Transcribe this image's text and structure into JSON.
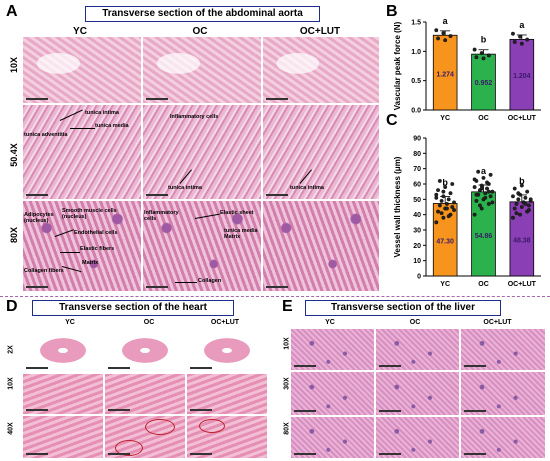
{
  "panels": {
    "A": {
      "label": "A",
      "title": "Transverse section of the abdominal aorta",
      "columns": [
        "YC",
        "OC",
        "OC+LUT"
      ],
      "rows": [
        "10X",
        "50.4X",
        "80X"
      ],
      "annotations": {
        "r2c1": [
          "tunica intima",
          "tunica media",
          "tunica adventitia"
        ],
        "r2c2": [
          "Inflammatory cells",
          "tunica intima"
        ],
        "r2c3": [
          "tunica intima"
        ],
        "r3c1": [
          "Adipocytes (nucleus)",
          "Smooth muscle cells (nucleus)",
          "Endothelial cells",
          "Elastic fibers",
          "Matrix",
          "Collagen fibers"
        ],
        "r3c2": [
          "Inflammatory cells",
          "Elastic sheet",
          "tunica media Matrix",
          "Collagen"
        ]
      }
    },
    "B": {
      "label": "B"
    },
    "C": {
      "label": "C"
    },
    "D": {
      "label": "D",
      "title": "Transverse section of the heart",
      "columns": [
        "YC",
        "OC",
        "OC+LUT"
      ],
      "rows": [
        "2X",
        "10X",
        "40X"
      ]
    },
    "E": {
      "label": "E",
      "title": "Transverse section of the liver",
      "columns": [
        "YC",
        "OC",
        "OC+LUT"
      ],
      "rows": [
        "10X",
        "30X",
        "80X"
      ]
    }
  },
  "chart_data": [
    {
      "type": "bar",
      "panel": "B",
      "categories": [
        "YC",
        "OC",
        "OC+LUT"
      ],
      "values": [
        1.274,
        0.952,
        1.204
      ],
      "value_labels": [
        "1.274",
        "0.952",
        "1.204"
      ],
      "significance": [
        "a",
        "b",
        "a"
      ],
      "colors": [
        "#f7941d",
        "#2bb24c",
        "#8b3fb5"
      ],
      "points": [
        [
          1.36,
          1.31,
          1.26,
          1.22,
          1.19
        ],
        [
          1.03,
          0.97,
          0.93,
          0.9,
          0.88
        ],
        [
          1.3,
          1.25,
          1.2,
          1.16,
          1.13
        ]
      ],
      "title": "",
      "xlabel": "",
      "ylabel": "Vascular peak force (N)",
      "ylim": [
        0.0,
        1.5
      ],
      "yticks": [
        "0.0",
        "0.5",
        "1.0",
        "1.5"
      ]
    },
    {
      "type": "bar",
      "panel": "C",
      "categories": [
        "YC",
        "OC",
        "OC+LUT"
      ],
      "values": [
        47.3,
        54.86,
        48.38
      ],
      "value_labels": [
        "47.30",
        "54.86",
        "48.38"
      ],
      "significance": [
        "b",
        "a",
        "b"
      ],
      "colors": [
        "#f7941d",
        "#2bb24c",
        "#8b3fb5"
      ],
      "points": [
        [
          35,
          38,
          40,
          42,
          44,
          45,
          46,
          47,
          48,
          49,
          50,
          51,
          52,
          54,
          56,
          58,
          60,
          62,
          44,
          43,
          41,
          39,
          53,
          55
        ],
        [
          40,
          44,
          47,
          49,
          50,
          52,
          53,
          54,
          55,
          56,
          57,
          58,
          59,
          60,
          62,
          64,
          66,
          68,
          51,
          48,
          46,
          61,
          63,
          57,
          55,
          53
        ],
        [
          38,
          40,
          42,
          44,
          45,
          46,
          47,
          48,
          49,
          50,
          51,
          52,
          53,
          55,
          57,
          59,
          43,
          41,
          48,
          50,
          54,
          47
        ]
      ],
      "title": "",
      "xlabel": "",
      "ylabel": "Vessel wall thickness (μm)",
      "ylim": [
        0,
        90
      ],
      "yticks": [
        "0",
        "10",
        "20",
        "30",
        "40",
        "50",
        "60",
        "70",
        "80",
        "90"
      ]
    }
  ]
}
